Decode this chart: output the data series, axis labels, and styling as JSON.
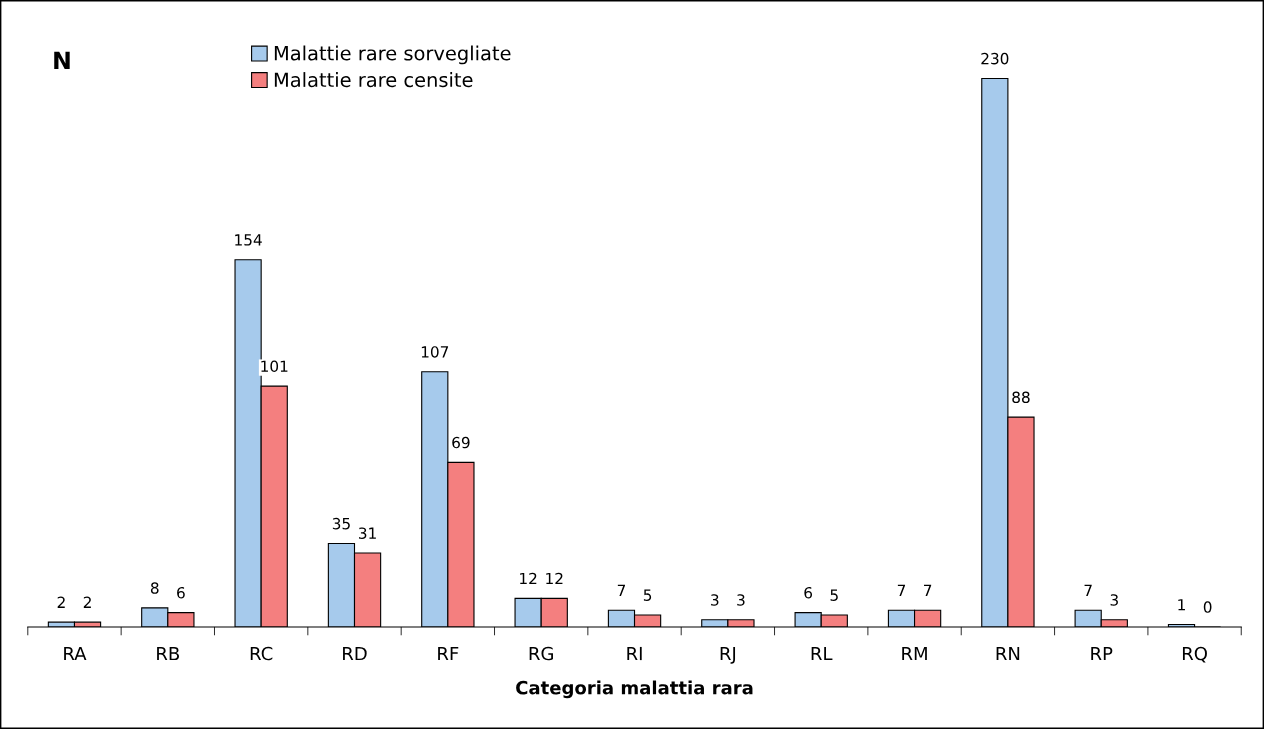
{
  "chart_data": {
    "type": "bar",
    "ylabel": "N",
    "xlabel": "Categoria malattia rara",
    "categories": [
      "RA",
      "RB",
      "RC",
      "RD",
      "RF",
      "RG",
      "RI",
      "RJ",
      "RL",
      "RM",
      "RN",
      "RP",
      "RQ"
    ],
    "series": [
      {
        "name": "Malattie rare sorvegliate",
        "color": "#a6caec",
        "values": [
          2,
          8,
          154,
          35,
          107,
          12,
          7,
          3,
          6,
          7,
          230,
          7,
          1
        ]
      },
      {
        "name": "Malattie rare censite",
        "color": "#f47f7f",
        "values": [
          2,
          6,
          101,
          31,
          69,
          12,
          5,
          3,
          5,
          7,
          88,
          3,
          0
        ]
      }
    ],
    "data_labels": true,
    "legend": "top left",
    "grid": false,
    "tick_labels": "x"
  }
}
